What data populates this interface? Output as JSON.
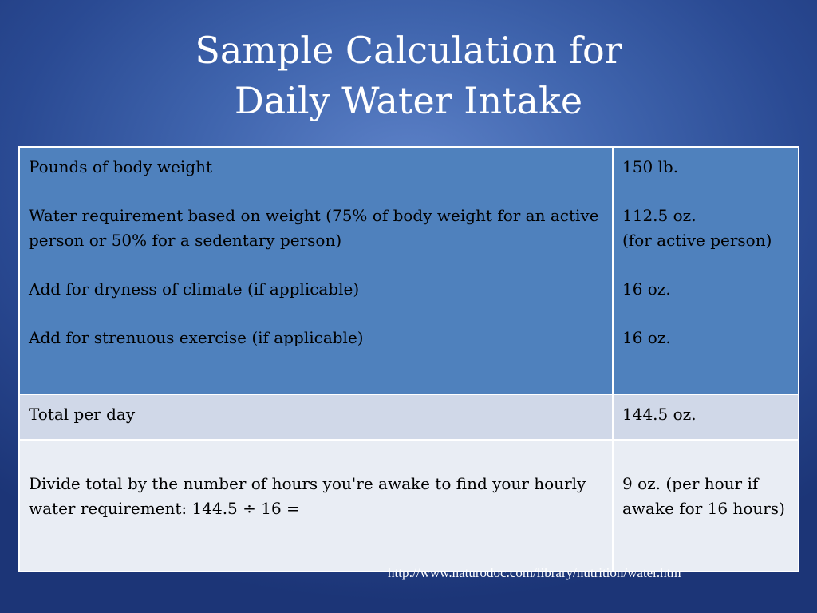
{
  "slide": {
    "title_line1": "Sample Calculation for",
    "title_line2": "Daily Water Intake"
  },
  "table": {
    "row1": {
      "left": [
        "Pounds of body weight",
        "Water requirement based on weight (75% of body weight for an active person or 50% for a sedentary person)",
        "Add for dryness of climate (if applicable)",
        "Add for strenuous exercise (if applicable)"
      ],
      "right": [
        "150 lb.",
        "112.5 oz.",
        "(for active person)",
        "16 oz.",
        "16 oz."
      ]
    },
    "row2": {
      "left": "Total per day",
      "right": "144.5 oz."
    },
    "row3": {
      "left": "Divide total by the number of hours you're awake to find your hourly water requirement: 144.5 ÷ 16 =",
      "right": "9 oz. (per hour if awake for 16 hours)"
    }
  },
  "source_url": "http://www.naturodoc.com/library/nutrition/water.htm"
}
